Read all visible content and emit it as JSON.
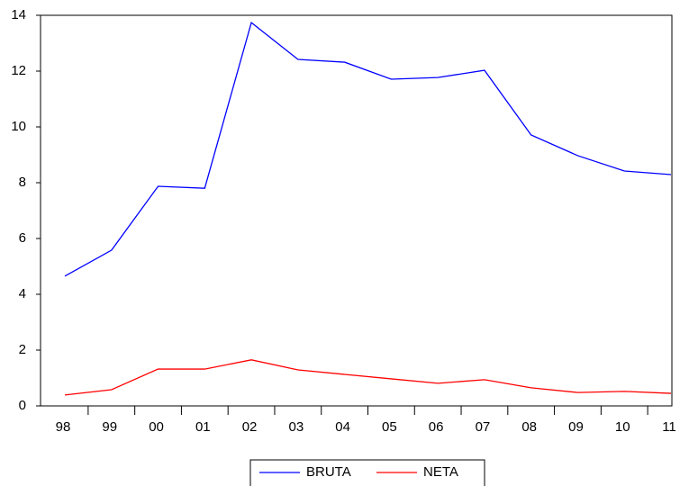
{
  "chart_data": {
    "type": "line",
    "categories": [
      "98",
      "99",
      "00",
      "01",
      "02",
      "03",
      "04",
      "05",
      "06",
      "07",
      "08",
      "09",
      "10",
      "11"
    ],
    "series": [
      {
        "name": "BRUTA",
        "color": "#0000ff",
        "values": [
          4.65,
          5.58,
          7.87,
          7.8,
          13.74,
          12.42,
          12.32,
          11.71,
          11.77,
          12.03,
          9.71,
          8.97,
          8.42,
          8.29
        ]
      },
      {
        "name": "NETA",
        "color": "#ff0000",
        "values": [
          0.39,
          0.58,
          1.32,
          1.32,
          1.65,
          1.29,
          1.13,
          0.97,
          0.81,
          0.94,
          0.65,
          0.48,
          0.52,
          0.45
        ]
      }
    ],
    "ylim": [
      0,
      14
    ],
    "yticks": [
      0,
      2,
      4,
      6,
      8,
      10,
      12,
      14
    ],
    "grid": false,
    "legend": "bottom"
  }
}
